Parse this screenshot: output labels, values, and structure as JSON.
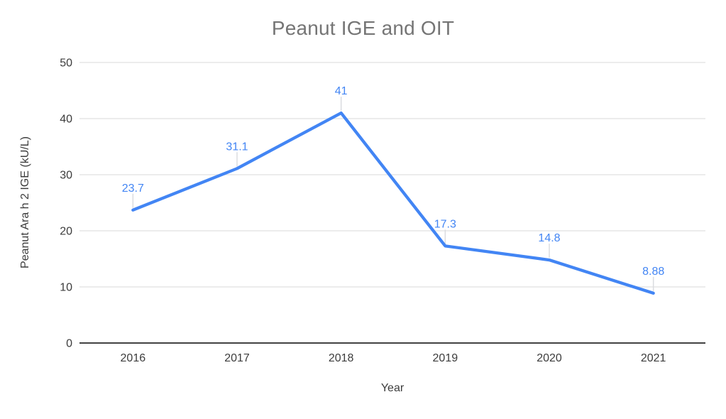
{
  "chart_data": {
    "type": "line",
    "title": "Peanut IGE and OIT",
    "xlabel": "Year",
    "ylabel": "Peanut Ara h 2 IGE (kU/L)",
    "categories": [
      "2016",
      "2017",
      "2018",
      "2019",
      "2020",
      "2021"
    ],
    "values": [
      23.7,
      31.1,
      41,
      17.3,
      14.8,
      8.88
    ],
    "point_labels": [
      "23.7",
      "31.1",
      "41",
      "17.3",
      "14.8",
      "8.88"
    ],
    "ylim": [
      0,
      50
    ],
    "y_ticks": [
      0,
      10,
      20,
      30,
      40,
      50
    ],
    "grid": true,
    "legend": "none",
    "colors": {
      "series_line": "#4285f4",
      "point_label": "#4285f4",
      "title_text": "#757575",
      "axis_text": "#3c3c3c",
      "gridline": "#e6e6e6",
      "baseline": "#424242",
      "callout": "#dadce0"
    }
  }
}
